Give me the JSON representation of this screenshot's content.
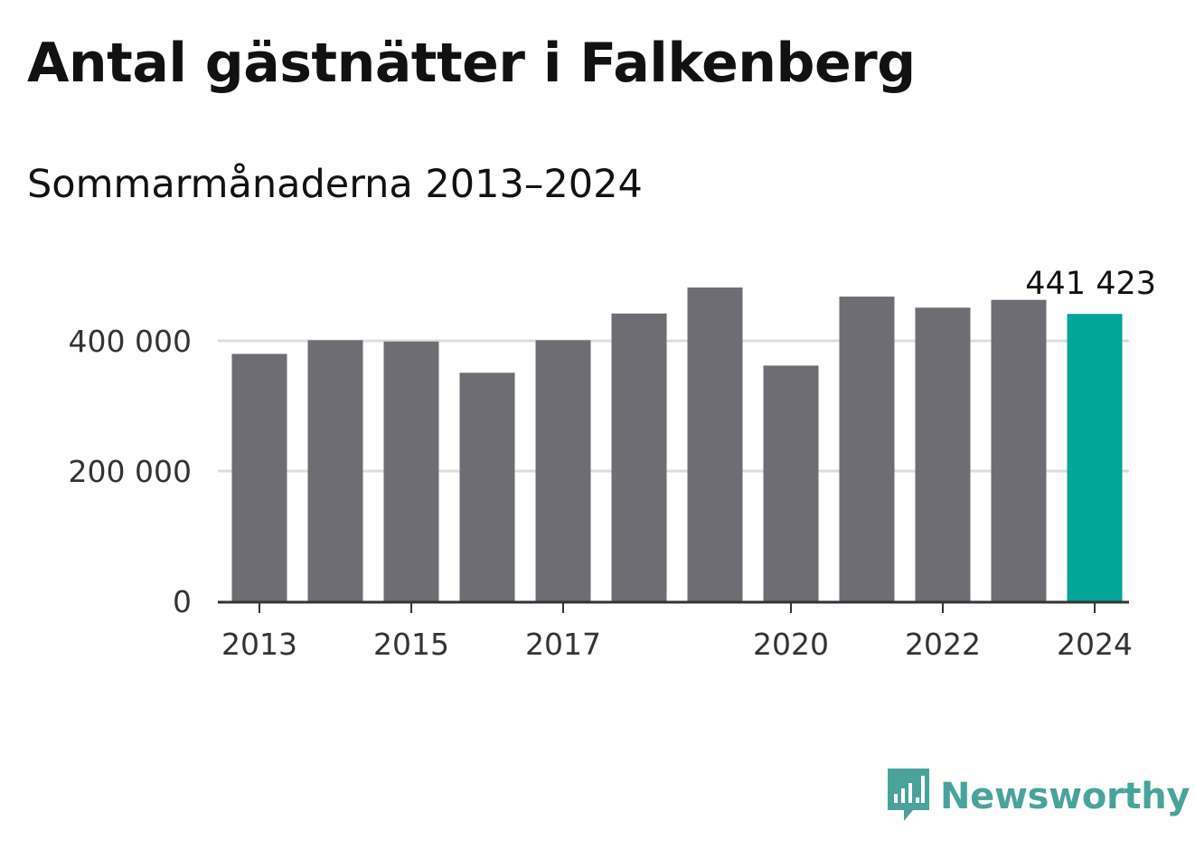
{
  "title": "Antal gästnätter i Falkenberg",
  "subtitle": "Sommarmånaderna 2013–2024",
  "brand": {
    "name": "Newsworthy",
    "icon": "bar-chart-speech-bubble-icon",
    "color": "#4aa39a"
  },
  "colors": {
    "bar": "#6e6d73",
    "highlight": "#00a598",
    "grid": "#dddddd",
    "axis": "#333333"
  },
  "chart_data": {
    "type": "bar",
    "categories": [
      "2013",
      "2014",
      "2015",
      "2016",
      "2017",
      "2018",
      "2019",
      "2020",
      "2021",
      "2022",
      "2023",
      "2024"
    ],
    "values": [
      380000,
      401000,
      399000,
      351000,
      401000,
      442000,
      482000,
      362000,
      468000,
      451000,
      463000,
      441423
    ],
    "highlight_index": 11,
    "value_label": "441 423",
    "x_tick_labels": [
      "2013",
      "2015",
      "2017",
      "2020",
      "2022",
      "2024"
    ],
    "y_ticks": [
      0,
      200000,
      400000
    ],
    "y_tick_labels": [
      "0",
      "200 000",
      "400 000"
    ],
    "ylim": [
      0,
      500000
    ],
    "grid": true
  }
}
